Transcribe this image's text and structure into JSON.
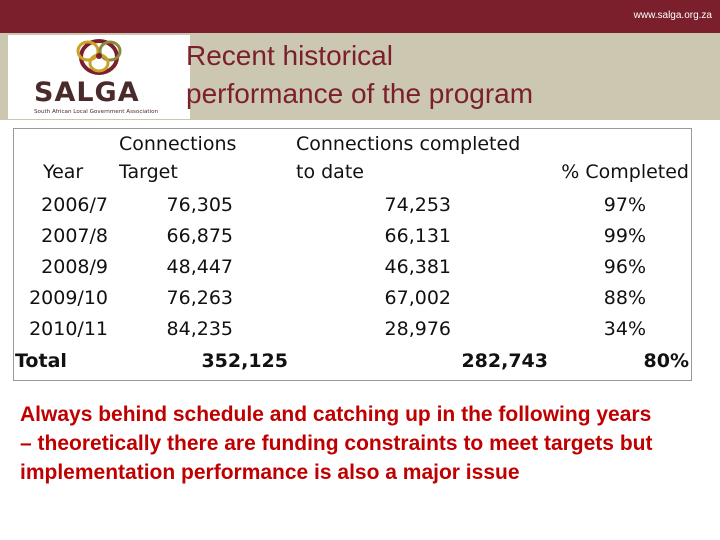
{
  "header": {
    "url": "www.salga.org.za",
    "title_line1": "Recent historical",
    "title_line2": "performance of the program"
  },
  "logo": {
    "wordmark": "SALGA",
    "tagline": "South African Local Government Association"
  },
  "table": {
    "headers": {
      "year": "Year",
      "target_line1": "Connections",
      "target_line2": "Target",
      "completed_line1": "Connections completed",
      "completed_line2": "to date",
      "pct": "% Completed"
    },
    "rows": [
      {
        "year": "2006/7",
        "target": "76,305",
        "completed": "74,253",
        "pct": "97%"
      },
      {
        "year": "2007/8",
        "target": "66,875",
        "completed": "66,131",
        "pct": "99%"
      },
      {
        "year": "2008/9",
        "target": "48,447",
        "completed": "46,381",
        "pct": "96%"
      },
      {
        "year": "2009/10",
        "target": "76,263",
        "completed": "67,002",
        "pct": "88%"
      },
      {
        "year": "2010/11",
        "target": "84,235",
        "completed": "28,976",
        "pct": "34%"
      }
    ],
    "total": {
      "label": "Total",
      "target": "352,125",
      "completed": "282,743",
      "pct": "80%"
    }
  },
  "footnote": "Always behind schedule and catching up in the following years – theoretically there are funding constraints to meet targets but implementation performance is also a major issue",
  "colors": {
    "brand": "#7a1f2b",
    "band": "#ccc7b0",
    "alert": "#c00000"
  }
}
